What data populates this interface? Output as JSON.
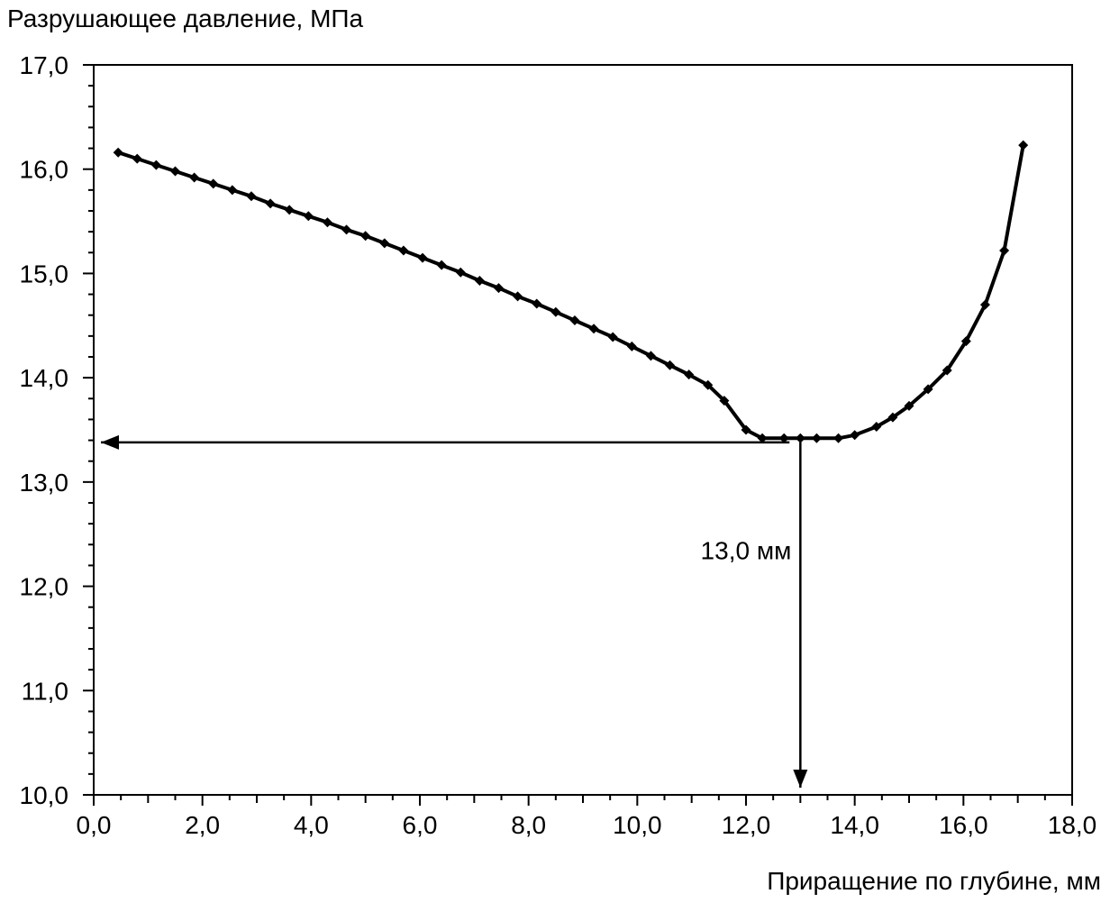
{
  "chart_data": {
    "type": "line",
    "title": "",
    "ylabel": "Разрушающее давление, МПа",
    "xlabel": "Приращение по глубине, мм",
    "xlim": [
      0,
      18
    ],
    "ylim": [
      10,
      17
    ],
    "x_ticks": [
      0,
      2,
      4,
      6,
      8,
      10,
      12,
      14,
      16,
      18
    ],
    "y_ticks": [
      10,
      11,
      12,
      13,
      14,
      15,
      16,
      17
    ],
    "x_tick_labels": [
      "0,0",
      "2,0",
      "4,0",
      "6,0",
      "8,0",
      "10,0",
      "12,0",
      "14,0",
      "16,0",
      "18,0"
    ],
    "y_tick_labels": [
      "10,0",
      "11,0",
      "12,0",
      "13,0",
      "14,0",
      "15,0",
      "16,0",
      "17,0"
    ],
    "grid": false,
    "legend": "none",
    "series": [
      {
        "color": "#000000",
        "marker": "diamond",
        "x": [
          0.45,
          0.8,
          1.15,
          1.5,
          1.85,
          2.2,
          2.55,
          2.9,
          3.25,
          3.6,
          3.95,
          4.3,
          4.65,
          5.0,
          5.35,
          5.7,
          6.05,
          6.4,
          6.75,
          7.1,
          7.45,
          7.8,
          8.15,
          8.5,
          8.85,
          9.2,
          9.55,
          9.9,
          10.25,
          10.6,
          10.95,
          11.3,
          11.6,
          12.0,
          12.3,
          12.7,
          13.0,
          13.3,
          13.7,
          14.0,
          14.4,
          14.7,
          15.0,
          15.35,
          15.7,
          16.05,
          16.4,
          16.75,
          17.1
        ],
        "y": [
          16.16,
          16.1,
          16.04,
          15.98,
          15.92,
          15.86,
          15.8,
          15.74,
          15.67,
          15.61,
          15.55,
          15.49,
          15.42,
          15.36,
          15.29,
          15.22,
          15.15,
          15.08,
          15.01,
          14.93,
          14.86,
          14.78,
          14.71,
          14.63,
          14.55,
          14.47,
          14.39,
          14.3,
          14.21,
          14.12,
          14.03,
          13.93,
          13.78,
          13.5,
          13.42,
          13.42,
          13.42,
          13.42,
          13.42,
          13.45,
          13.53,
          13.62,
          13.73,
          13.89,
          14.07,
          14.35,
          14.7,
          15.22,
          16.23
        ]
      }
    ],
    "annotations": [
      {
        "text": "13,0 мм",
        "x": 13.0,
        "y": 13.38
      }
    ]
  }
}
